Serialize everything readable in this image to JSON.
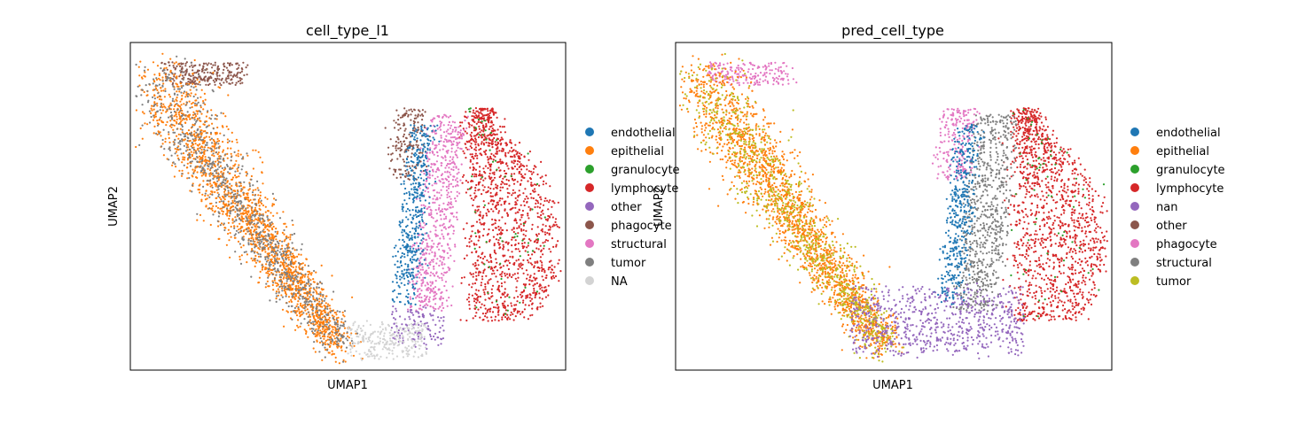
{
  "chart_data": [
    {
      "type": "scatter",
      "title": "cell_type_l1",
      "xlabel": "UMAP1",
      "ylabel": "UMAP2",
      "grid": false,
      "legend": "right-outside",
      "ticks": "none",
      "series": [
        {
          "name": "endothelial",
          "color": "#1f77b4"
        },
        {
          "name": "epithelial",
          "color": "#ff7f0e"
        },
        {
          "name": "granulocyte",
          "color": "#2ca02c"
        },
        {
          "name": "lymphocyte",
          "color": "#d62728"
        },
        {
          "name": "other",
          "color": "#9467bd"
        },
        {
          "name": "phagocyte",
          "color": "#8c564b"
        },
        {
          "name": "structural",
          "color": "#e377c2"
        },
        {
          "name": "tumor",
          "color": "#7f7f7f"
        },
        {
          "name": "NA",
          "color": "#d3d3d3"
        }
      ]
    },
    {
      "type": "scatter",
      "title": "pred_cell_type",
      "xlabel": "UMAP1",
      "ylabel": "UMAP2",
      "grid": false,
      "legend": "right-outside",
      "ticks": "none",
      "series": [
        {
          "name": "endothelial",
          "color": "#1f77b4"
        },
        {
          "name": "epithelial",
          "color": "#ff7f0e"
        },
        {
          "name": "granulocyte",
          "color": "#2ca02c"
        },
        {
          "name": "lymphocyte",
          "color": "#d62728"
        },
        {
          "name": "nan",
          "color": "#9467bd"
        },
        {
          "name": "other",
          "color": "#8c564b"
        },
        {
          "name": "phagocyte",
          "color": "#e377c2"
        },
        {
          "name": "structural",
          "color": "#7f7f7f"
        },
        {
          "name": "tumor",
          "color": "#bcbd22"
        }
      ]
    }
  ]
}
